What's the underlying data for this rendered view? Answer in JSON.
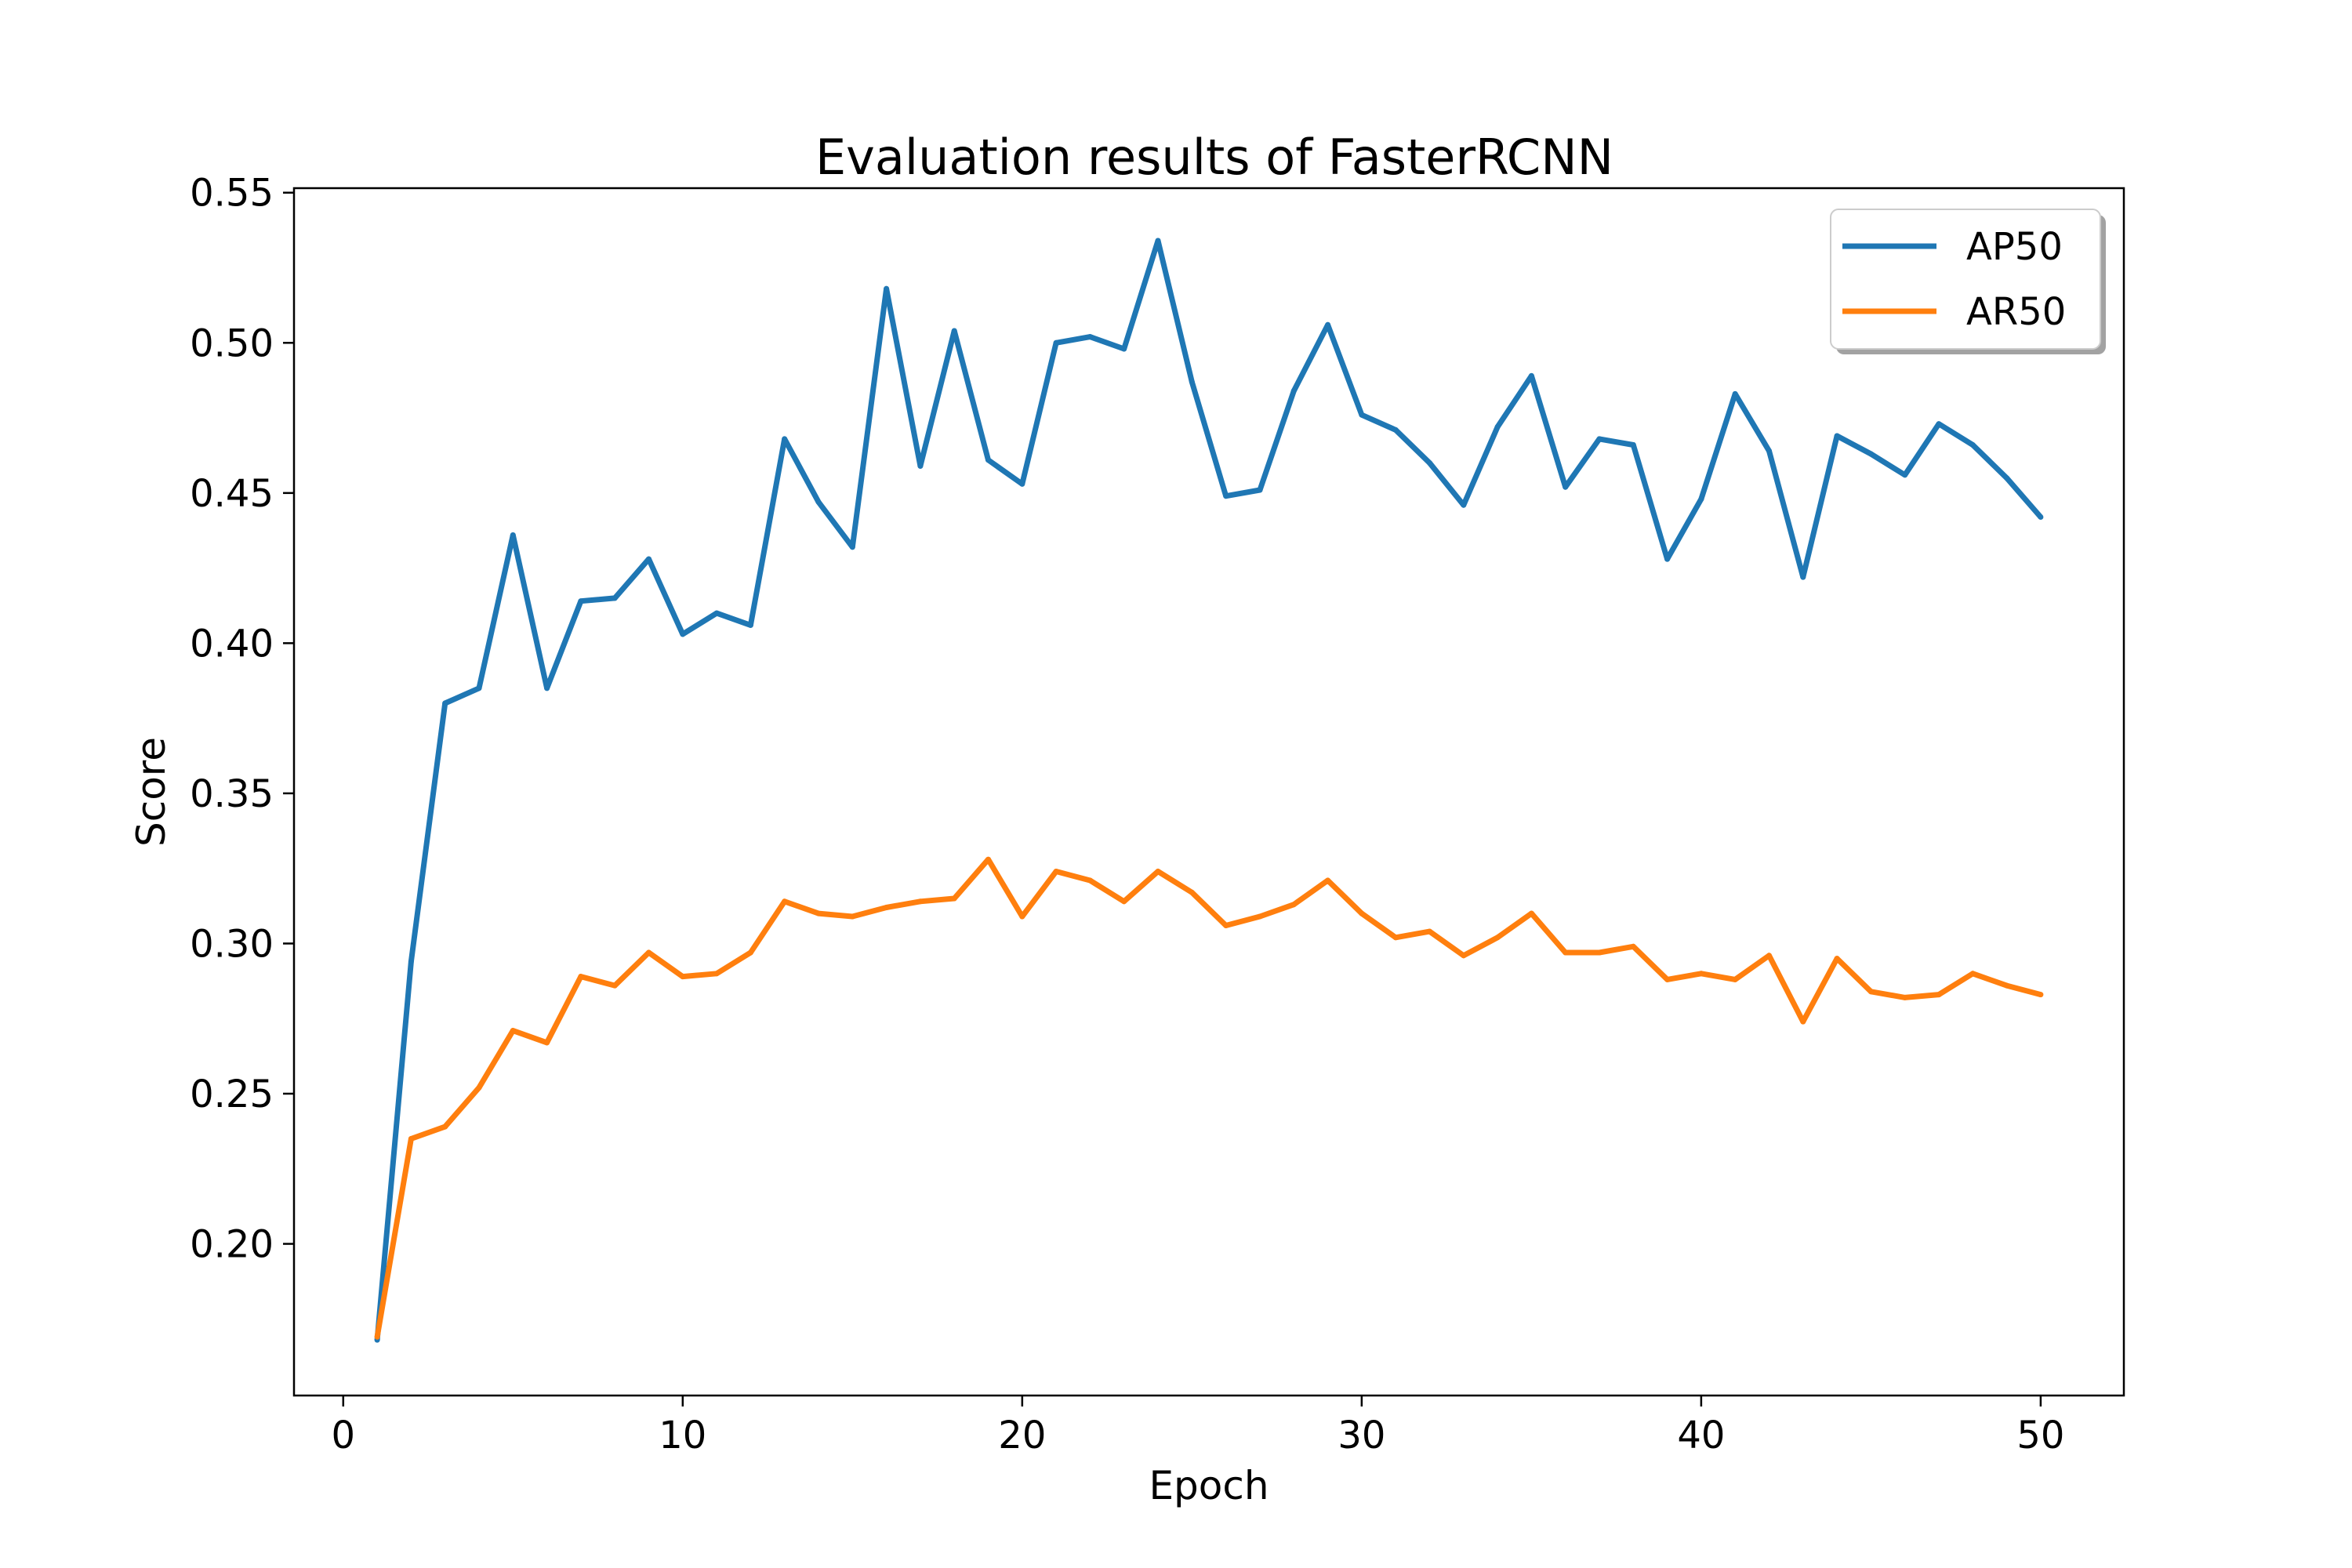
{
  "chart_data": {
    "type": "line",
    "title": "Evaluation results of FasterRCNN",
    "xlabel": "Epoch",
    "ylabel": "Score",
    "xlim": [
      -1.45,
      52.45
    ],
    "ylim": [
      0.1495,
      0.5515
    ],
    "xticks": [
      0,
      10,
      20,
      30,
      40,
      50
    ],
    "xtick_labels": [
      "0",
      "10",
      "20",
      "30",
      "40",
      "50"
    ],
    "yticks": [
      0.2,
      0.25,
      0.3,
      0.35,
      0.4,
      0.45,
      0.5,
      0.55
    ],
    "ytick_labels": [
      "0.20",
      "0.25",
      "0.30",
      "0.35",
      "0.40",
      "0.45",
      "0.50",
      "0.55"
    ],
    "grid": false,
    "legend_position": "top-right",
    "x": [
      1,
      2,
      3,
      4,
      5,
      6,
      7,
      8,
      9,
      10,
      11,
      12,
      13,
      14,
      15,
      16,
      17,
      18,
      19,
      20,
      21,
      22,
      23,
      24,
      25,
      26,
      27,
      28,
      29,
      30,
      31,
      32,
      33,
      34,
      35,
      36,
      37,
      38,
      39,
      40,
      41,
      42,
      43,
      44,
      45,
      46,
      47,
      48,
      49,
      50
    ],
    "series": [
      {
        "name": "AP50",
        "color": "#1f77b4",
        "values": [
          0.168,
          0.294,
          0.38,
          0.385,
          0.436,
          0.385,
          0.414,
          0.415,
          0.428,
          0.403,
          0.41,
          0.406,
          0.468,
          0.447,
          0.432,
          0.518,
          0.459,
          0.504,
          0.461,
          0.453,
          0.5,
          0.502,
          0.498,
          0.534,
          0.487,
          0.449,
          0.451,
          0.484,
          0.506,
          0.476,
          0.471,
          0.46,
          0.446,
          0.472,
          0.489,
          0.452,
          0.468,
          0.466,
          0.428,
          0.448,
          0.483,
          0.464,
          0.422,
          0.469,
          0.463,
          0.456,
          0.473,
          0.466,
          0.455,
          0.442
        ]
      },
      {
        "name": "AR50",
        "color": "#ff7f0e",
        "values": [
          0.169,
          0.235,
          0.239,
          0.252,
          0.271,
          0.267,
          0.289,
          0.286,
          0.297,
          0.289,
          0.29,
          0.297,
          0.314,
          0.31,
          0.309,
          0.312,
          0.314,
          0.315,
          0.328,
          0.309,
          0.324,
          0.321,
          0.314,
          0.324,
          0.317,
          0.306,
          0.309,
          0.313,
          0.321,
          0.31,
          0.302,
          0.304,
          0.296,
          0.302,
          0.31,
          0.297,
          0.297,
          0.299,
          0.288,
          0.29,
          0.288,
          0.296,
          0.274,
          0.295,
          0.284,
          0.282,
          0.283,
          0.29,
          0.286,
          0.283
        ]
      }
    ]
  }
}
